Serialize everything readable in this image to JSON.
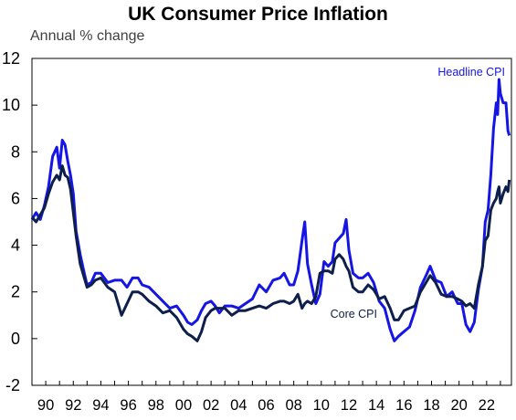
{
  "chart_data": {
    "type": "line",
    "title": "UK Consumer Price Inflation",
    "subtitle": "Annual % change",
    "xlabel": "",
    "ylabel": "",
    "xlim": [
      1989,
      2023.8
    ],
    "ylim": [
      -2,
      12
    ],
    "yticks": [
      12,
      10,
      8,
      6,
      4,
      2,
      0,
      -2
    ],
    "xtick_labels": [
      "90",
      "92",
      "94",
      "96",
      "98",
      "00",
      "02",
      "04",
      "06",
      "08",
      "10",
      "12",
      "14",
      "16",
      "18",
      "20",
      "22"
    ],
    "xtick_years": [
      1990,
      1992,
      1994,
      1996,
      1998,
      2000,
      2002,
      2004,
      2006,
      2008,
      2010,
      2012,
      2014,
      2016,
      2018,
      2020,
      2022
    ],
    "grid": false,
    "legend": "none",
    "annotations": [
      {
        "text": "Headline CPI",
        "series": "Headline CPI",
        "position": "top-right"
      },
      {
        "text": "Core CPI",
        "series": "Core CPI",
        "position": "center-right"
      }
    ],
    "series": [
      {
        "name": "Headline CPI",
        "color": "#1515e6",
        "x": [
          1989.0,
          1989.3,
          1989.6,
          1989.9,
          1990.2,
          1990.5,
          1990.8,
          1991.0,
          1991.2,
          1991.4,
          1991.6,
          1991.8,
          1992.0,
          1992.2,
          1992.5,
          1992.8,
          1993.0,
          1993.3,
          1993.6,
          1994.0,
          1994.5,
          1995.0,
          1995.5,
          1995.9,
          1996.3,
          1996.7,
          1997.0,
          1997.5,
          1998.0,
          1998.5,
          1999.0,
          1999.5,
          2000.0,
          2000.3,
          2000.6,
          2001.0,
          2001.3,
          2001.6,
          2002.0,
          2002.3,
          2002.6,
          2003.0,
          2003.5,
          2004.0,
          2004.5,
          2005.0,
          2005.5,
          2006.0,
          2006.5,
          2007.0,
          2007.3,
          2007.7,
          2008.0,
          2008.3,
          2008.6,
          2008.8,
          2009.0,
          2009.3,
          2009.6,
          2009.9,
          2010.2,
          2010.5,
          2010.8,
          2011.0,
          2011.3,
          2011.6,
          2011.8,
          2012.0,
          2012.3,
          2012.7,
          2013.0,
          2013.4,
          2013.8,
          2014.2,
          2014.6,
          2015.0,
          2015.3,
          2015.6,
          2016.0,
          2016.4,
          2016.8,
          2017.2,
          2017.6,
          2017.9,
          2018.3,
          2018.7,
          2019.1,
          2019.5,
          2019.9,
          2020.2,
          2020.5,
          2020.8,
          2021.1,
          2021.4,
          2021.7,
          2021.9,
          2022.1,
          2022.3,
          2022.5,
          2022.7,
          2022.8,
          2022.9,
          2023.0,
          2023.2,
          2023.4,
          2023.55,
          2023.65
        ],
        "values": [
          5.1,
          5.4,
          5.1,
          5.7,
          6.5,
          7.8,
          8.2,
          7.3,
          8.5,
          8.3,
          7.6,
          7.0,
          6.2,
          4.6,
          3.6,
          2.8,
          2.3,
          2.4,
          2.8,
          2.8,
          2.4,
          2.5,
          2.5,
          2.2,
          2.6,
          2.6,
          2.3,
          2.2,
          1.9,
          1.6,
          1.3,
          1.4,
          1.0,
          0.7,
          0.6,
          0.8,
          1.2,
          1.5,
          1.6,
          1.4,
          1.1,
          1.4,
          1.4,
          1.3,
          1.5,
          1.7,
          2.3,
          2.0,
          2.5,
          2.6,
          2.8,
          2.3,
          2.3,
          2.9,
          4.2,
          5.0,
          3.2,
          2.3,
          1.5,
          1.9,
          3.3,
          3.1,
          3.3,
          4.1,
          4.3,
          4.5,
          5.1,
          3.8,
          2.8,
          2.6,
          2.6,
          2.8,
          2.4,
          1.6,
          1.3,
          0.4,
          -0.1,
          0.1,
          0.3,
          0.5,
          1.2,
          2.2,
          2.7,
          3.1,
          2.5,
          2.4,
          1.8,
          2.0,
          1.5,
          1.5,
          0.6,
          0.3,
          0.7,
          2.1,
          3.1,
          5.0,
          5.5,
          7.0,
          9.0,
          10.1,
          9.6,
          11.1,
          10.5,
          10.1,
          10.1,
          8.9,
          8.7
        ]
      },
      {
        "name": "Core CPI",
        "color": "#0d1f4a",
        "x": [
          1989.0,
          1989.3,
          1989.6,
          1989.9,
          1990.2,
          1990.5,
          1990.8,
          1991.0,
          1991.2,
          1991.4,
          1991.6,
          1991.8,
          1992.0,
          1992.2,
          1992.5,
          1992.8,
          1993.0,
          1993.3,
          1993.6,
          1994.0,
          1994.5,
          1995.0,
          1995.5,
          1995.9,
          1996.3,
          1996.7,
          1997.0,
          1997.5,
          1998.0,
          1998.5,
          1999.0,
          1999.5,
          2000.0,
          2000.3,
          2000.6,
          2001.0,
          2001.3,
          2001.6,
          2002.0,
          2002.3,
          2002.6,
          2003.0,
          2003.5,
          2004.0,
          2004.5,
          2005.0,
          2005.5,
          2006.0,
          2006.5,
          2007.0,
          2007.3,
          2007.7,
          2008.0,
          2008.3,
          2008.6,
          2008.8,
          2009.0,
          2009.3,
          2009.6,
          2009.9,
          2010.2,
          2010.5,
          2010.8,
          2011.0,
          2011.3,
          2011.6,
          2011.8,
          2012.0,
          2012.3,
          2012.7,
          2013.0,
          2013.4,
          2013.8,
          2014.2,
          2014.6,
          2015.0,
          2015.3,
          2015.6,
          2016.0,
          2016.4,
          2016.8,
          2017.2,
          2017.6,
          2017.9,
          2018.3,
          2018.7,
          2019.1,
          2019.5,
          2019.9,
          2020.2,
          2020.5,
          2020.8,
          2021.1,
          2021.4,
          2021.7,
          2021.9,
          2022.1,
          2022.3,
          2022.5,
          2022.7,
          2022.8,
          2022.9,
          2023.0,
          2023.2,
          2023.4,
          2023.55,
          2023.65
        ],
        "values": [
          5.2,
          5.0,
          5.3,
          5.6,
          6.2,
          6.7,
          7.0,
          6.8,
          7.4,
          7.0,
          6.9,
          6.4,
          5.4,
          4.4,
          3.2,
          2.6,
          2.2,
          2.3,
          2.5,
          2.6,
          2.2,
          2.0,
          1.0,
          1.5,
          2.0,
          2.0,
          1.9,
          1.6,
          1.4,
          1.1,
          1.2,
          0.9,
          0.4,
          0.2,
          0.1,
          -0.1,
          0.3,
          0.9,
          1.2,
          1.3,
          1.3,
          1.3,
          1.0,
          1.2,
          1.2,
          1.3,
          1.4,
          1.3,
          1.5,
          1.6,
          1.6,
          1.5,
          1.6,
          1.9,
          1.3,
          1.5,
          1.6,
          1.5,
          1.8,
          2.8,
          2.9,
          2.9,
          2.8,
          3.4,
          3.6,
          3.4,
          3.1,
          2.9,
          2.2,
          2.0,
          2.0,
          2.3,
          2.1,
          1.7,
          1.8,
          1.3,
          0.8,
          0.8,
          1.2,
          1.3,
          1.4,
          2.0,
          2.4,
          2.7,
          2.4,
          1.9,
          1.8,
          1.8,
          1.7,
          1.6,
          1.4,
          1.5,
          1.3,
          2.3,
          3.1,
          4.2,
          4.4,
          5.5,
          5.8,
          6.0,
          6.3,
          6.5,
          5.8,
          6.2,
          6.5,
          6.3,
          6.8
        ]
      }
    ]
  }
}
